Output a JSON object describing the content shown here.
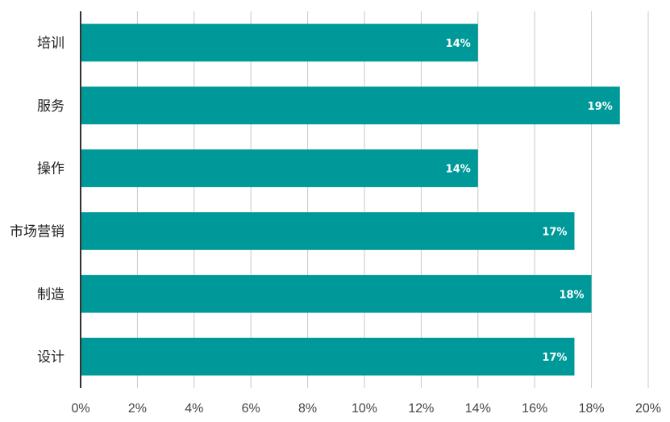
{
  "chart_data": {
    "type": "bar",
    "orientation": "horizontal",
    "title": "",
    "xlabel": "",
    "ylabel": "",
    "categories": [
      "培训",
      "服务",
      "操作",
      "市场营销",
      "制造",
      "设计"
    ],
    "values": [
      14,
      19,
      14,
      17.4,
      18,
      17.4
    ],
    "data_labels": [
      "14%",
      "19%",
      "14%",
      "17%",
      "18%",
      "17%"
    ],
    "x_ticks": [
      "0%",
      "2%",
      "4%",
      "6%",
      "8%",
      "10%",
      "12%",
      "14%",
      "16%",
      "18%",
      "20%"
    ],
    "xlim": [
      0,
      20
    ],
    "grid": "vertical",
    "legend": "none",
    "colors": {
      "bar": "#009999",
      "grid": "#c8c8c8",
      "axis": "#333333"
    }
  }
}
